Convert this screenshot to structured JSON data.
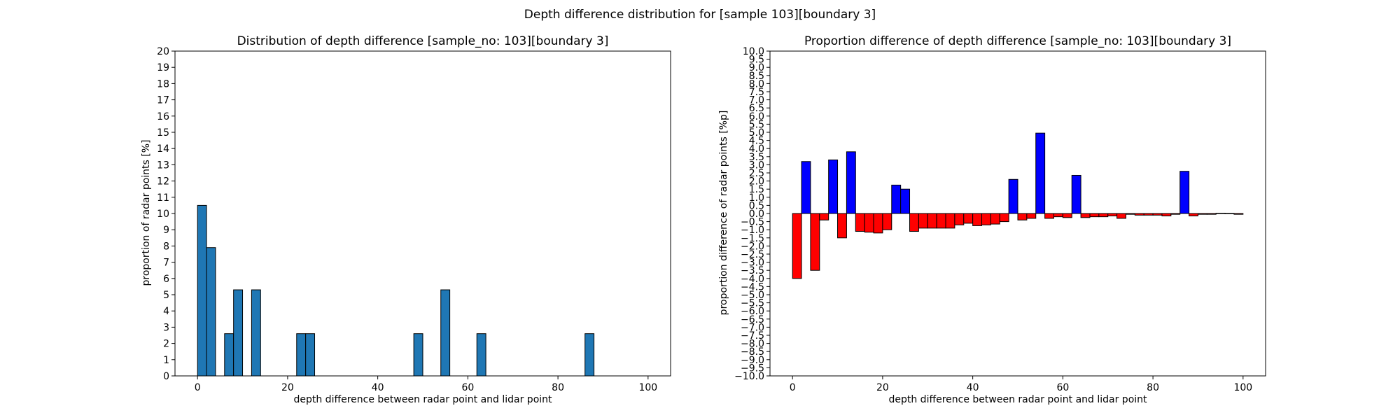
{
  "suptitle": "Depth difference distribution for [sample 103][boundary 3]",
  "chart_data": [
    {
      "type": "bar",
      "title": "Distribution of depth difference [sample_no: 103][boundary 3]",
      "xlabel": "depth difference between radar point and lidar point",
      "ylabel": "proportion of radar points [%]",
      "xlim": [
        -5,
        105
      ],
      "ylim": [
        0,
        20
      ],
      "xticks": [
        "0",
        "20",
        "40",
        "60",
        "80",
        "100"
      ],
      "yticks": [
        "0",
        "1",
        "2",
        "3",
        "4",
        "5",
        "6",
        "7",
        "8",
        "9",
        "10",
        "11",
        "12",
        "13",
        "14",
        "15",
        "16",
        "17",
        "18",
        "19",
        "20"
      ],
      "bar_width": 2,
      "bar_color": "#1f77b4",
      "x": [
        1,
        3,
        7,
        9,
        13,
        23,
        25,
        49,
        55,
        63,
        87
      ],
      "values": [
        10.5,
        7.9,
        2.6,
        5.3,
        5.3,
        2.6,
        2.6,
        2.6,
        5.3,
        2.6,
        2.6
      ]
    },
    {
      "type": "bar",
      "title": "Proportion difference of depth difference [sample_no: 103][boundary 3]",
      "xlabel": "depth difference between radar point and lidar point",
      "ylabel": "proportion difference of radar points [%p]",
      "xlim": [
        -5,
        105
      ],
      "ylim": [
        -10,
        10
      ],
      "xticks": [
        "0",
        "20",
        "40",
        "60",
        "80",
        "100"
      ],
      "yticks": [
        "10.0",
        "9.5",
        "9.0",
        "8.5",
        "8.0",
        "7.5",
        "7.0",
        "6.5",
        "6.0",
        "5.5",
        "5.0",
        "4.5",
        "4.0",
        "3.5",
        "3.0",
        "2.5",
        "2.0",
        "1.5",
        "1.0",
        "0.5",
        "0.0",
        "−0.5",
        "−1.0",
        "−1.5",
        "−2.0",
        "−2.5",
        "−3.0",
        "−3.5",
        "−4.0",
        "−4.5",
        "−5.0",
        "−5.5",
        "−6.0",
        "−6.5",
        "−7.0",
        "−7.5",
        "−8.0",
        "−8.5",
        "−9.0",
        "−9.5",
        "−10.0"
      ],
      "bar_width": 2,
      "positive_color": "#0000ff",
      "negative_color": "#ff0000",
      "x": [
        1,
        3,
        5,
        7,
        9,
        11,
        13,
        15,
        17,
        19,
        21,
        23,
        25,
        27,
        29,
        31,
        33,
        35,
        37,
        39,
        41,
        43,
        45,
        47,
        49,
        51,
        53,
        55,
        57,
        59,
        61,
        63,
        65,
        67,
        69,
        71,
        73,
        75,
        77,
        79,
        81,
        83,
        85,
        87,
        89,
        91,
        93,
        95,
        97,
        99
      ],
      "values": [
        -4.0,
        3.2,
        -3.5,
        -0.4,
        3.3,
        -1.5,
        3.8,
        -1.1,
        -1.15,
        -1.2,
        -1.0,
        1.75,
        1.5,
        -1.1,
        -0.9,
        -0.9,
        -0.9,
        -0.9,
        -0.7,
        -0.6,
        -0.75,
        -0.7,
        -0.65,
        -0.5,
        2.1,
        -0.4,
        -0.3,
        4.95,
        -0.3,
        -0.2,
        -0.25,
        2.35,
        -0.25,
        -0.2,
        -0.2,
        -0.15,
        -0.3,
        -0.05,
        -0.1,
        -0.1,
        -0.1,
        -0.15,
        -0.05,
        2.6,
        -0.15,
        -0.05,
        -0.05,
        0.02,
        0.01,
        -0.05
      ]
    }
  ]
}
